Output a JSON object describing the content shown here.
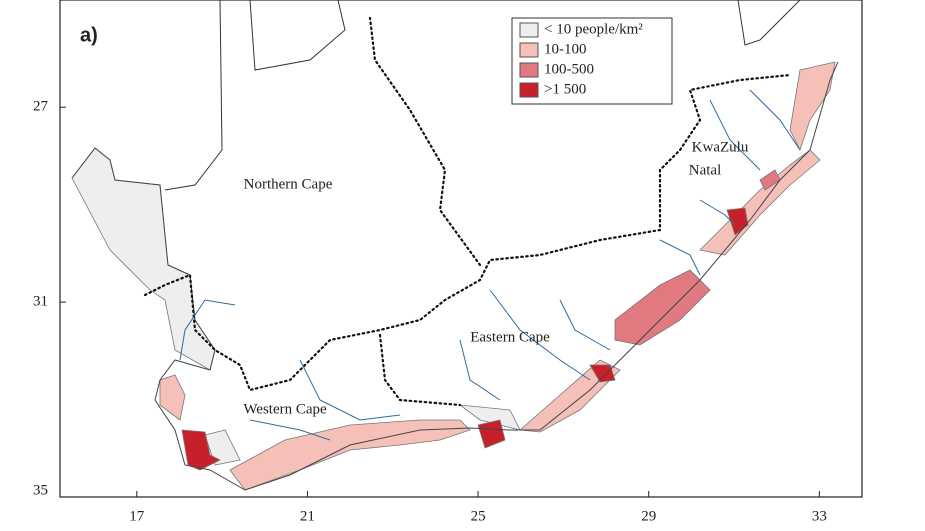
{
  "map": {
    "panel_label": "a)",
    "legend": [
      {
        "label": "< 10 people/km²",
        "color": "#eeeeee"
      },
      {
        "label": "10-100",
        "color": "#f4c0b8"
      },
      {
        "label": "100-500",
        "color": "#e07a80"
      },
      {
        "label": ">1 500",
        "color": "#c8202a"
      }
    ],
    "regions": {
      "northern_cape": "Northern Cape",
      "kwazulu_natal": [
        "KwaZulu",
        "Natal"
      ],
      "eastern_cape": "Eastern Cape",
      "western_cape": "Western Cape"
    },
    "xlim": [
      15.2,
      34
    ],
    "ylim": [
      24.8,
      35
    ],
    "xticks": [
      17,
      21,
      25,
      29,
      33
    ],
    "yticks": [
      27,
      31,
      35
    ]
  }
}
